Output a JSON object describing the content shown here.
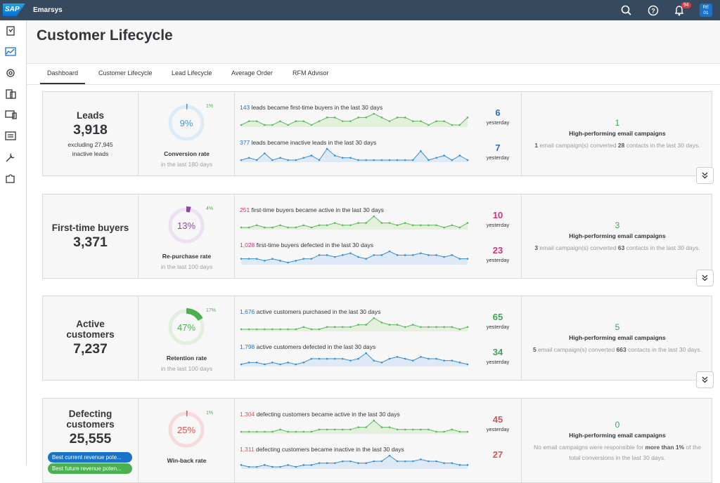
{
  "header": {
    "logo": "SAP",
    "product": "Emarsys",
    "notification_count": "94",
    "avatar": [
      "RE",
      "01"
    ]
  },
  "page_title": "Customer Lifecycle",
  "tabs": [
    "Dashboard",
    "Customer Lifecycle",
    "Lead Lifecycle",
    "Average Order",
    "RFM Advisor"
  ],
  "cards": [
    {
      "name": "Leads",
      "count": "3,918",
      "note": [
        "excluding 27,945",
        "inactive leads"
      ],
      "gauge": {
        "center": "9%",
        "arc": {
          "value": 1,
          "label": "1%"
        },
        "color": "#3a9bdc",
        "track": "#dcecf7",
        "caption": "Conversion rate",
        "period": "in the last 180 days"
      },
      "rows": [
        {
          "count": "143",
          "text": " leads became first-time buyers in the last 30 days",
          "big": "6",
          "sub": "yesterday",
          "count_color": "#2a6fc4",
          "big_color": "#2a6fc4",
          "line": "#5cb85c",
          "area": "#e3f1dc",
          "spark": [
            4,
            5,
            5,
            4,
            4,
            5,
            4,
            5,
            5,
            4,
            5,
            6,
            6,
            5,
            5,
            6,
            6,
            7,
            6,
            5,
            6,
            6,
            5,
            5,
            4,
            5,
            5,
            4,
            4,
            6
          ]
        },
        {
          "count": "377",
          "text": " leads became inactive leads in the last 30 days",
          "big": "7",
          "sub": "yesterday",
          "count_color": "#2a6fc4",
          "big_color": "#2a6fc4",
          "line": "#3a8fd0",
          "area": "#dde9f4",
          "spark": [
            3,
            4,
            3,
            6,
            3,
            4,
            3,
            3,
            4,
            5,
            3,
            8,
            5,
            4,
            4,
            3,
            3,
            3,
            3,
            3,
            3,
            3,
            3,
            7,
            3,
            4,
            5,
            3,
            5,
            3
          ]
        }
      ],
      "campaigns": {
        "count": "1",
        "title": "High-performing email campaigns",
        "desc": [
          {
            "text": "1",
            "bold": true
          },
          {
            "text": " email campaign(s) converted ",
            "bold": false
          },
          {
            "text": "28",
            "bold": true
          },
          {
            "text": " contacts in the last 30 days.",
            "bold": false
          }
        ]
      }
    },
    {
      "name": "First-time buyers",
      "count": "3,371",
      "note": [],
      "gauge": {
        "center": "13%",
        "arc": {
          "value": 4,
          "label": "4%"
        },
        "color": "#8e44ad",
        "track": "#ece0f2",
        "caption": "Re-purchase rate",
        "period": "in the last 100 days"
      },
      "rows": [
        {
          "count": "251",
          "text": " first-time buyers became active in the last 30 days",
          "big": "10",
          "sub": "yesterday",
          "count_color": "#d0327a",
          "big_color": "#d0327a",
          "line": "#5cb85c",
          "area": "#e3f1dc",
          "spark": [
            4,
            4,
            5,
            4,
            4,
            5,
            4,
            4,
            5,
            4,
            5,
            5,
            6,
            5,
            5,
            6,
            6,
            9,
            6,
            6,
            5,
            6,
            5,
            5,
            5,
            5,
            4,
            5,
            4,
            6
          ]
        },
        {
          "count": "1,028",
          "text": " first-time buyers defected in the last 30 days",
          "big": "23",
          "sub": "yesterday",
          "count_color": "#d0327a",
          "big_color": "#d0327a",
          "line": "#3a8fd0",
          "area": "#dde9f4",
          "spark": [
            4,
            4,
            4,
            3,
            4,
            3,
            2,
            3,
            4,
            4,
            6,
            6,
            5,
            6,
            7,
            5,
            4,
            6,
            6,
            8,
            6,
            6,
            6,
            7,
            6,
            6,
            5,
            6,
            4,
            4
          ]
        }
      ],
      "campaigns": {
        "count": "3",
        "title": "High-performing email campaigns",
        "desc": [
          {
            "text": "3",
            "bold": true
          },
          {
            "text": " email campaign(s) converted ",
            "bold": false
          },
          {
            "text": "63",
            "bold": true
          },
          {
            "text": " contacts in the last 30 days.",
            "bold": false
          }
        ]
      }
    },
    {
      "name": "Active customers",
      "count": "7,237",
      "note": [],
      "gauge": {
        "center": "47%",
        "arc": {
          "value": 17,
          "label": "17%"
        },
        "color": "#4caf50",
        "track": "#e0f0dc",
        "caption": "Retention rate",
        "period": "in the last 100 days"
      },
      "rows": [
        {
          "count": "1,676",
          "text": " active customers purchased in the last 30 days",
          "big": "65",
          "sub": "yesterday",
          "count_color": "#2a6fc4",
          "big_color": "#3aa655",
          "line": "#5cb85c",
          "area": "#e3f1dc",
          "spark": [
            4,
            4,
            4,
            4,
            4,
            4,
            4,
            4,
            5,
            4,
            4,
            5,
            5,
            5,
            5,
            6,
            6,
            9,
            7,
            6,
            6,
            5,
            6,
            5,
            5,
            5,
            5,
            5,
            4,
            5
          ]
        },
        {
          "count": "1,798",
          "text": " active customers defected in the last 30 days",
          "big": "34",
          "sub": "yesterday",
          "count_color": "#2a6fc4",
          "big_color": "#3aa655",
          "line": "#3a8fd0",
          "area": "#dde9f4",
          "spark": [
            3,
            4,
            4,
            3,
            4,
            3,
            4,
            3,
            4,
            6,
            6,
            6,
            6,
            6,
            5,
            6,
            9,
            5,
            4,
            6,
            7,
            6,
            5,
            7,
            6,
            6,
            5,
            5,
            4,
            3
          ]
        }
      ],
      "campaigns": {
        "count": "5",
        "title": "High-performing email campaigns",
        "desc": [
          {
            "text": "5",
            "bold": true
          },
          {
            "text": " email campaign(s) converted ",
            "bold": false
          },
          {
            "text": "663",
            "bold": true
          },
          {
            "text": " contacts in the last 30 days.",
            "bold": false
          }
        ]
      }
    },
    {
      "name": "Defecting customers",
      "count": "25,555",
      "note": [],
      "pills": [
        "Best current revenue pote...",
        "Best future revenue poten..."
      ],
      "gauge": {
        "center": "25%",
        "arc": {
          "value": 1,
          "label": "1%"
        },
        "color": "#d9534f",
        "track": "#f5dcdb",
        "caption": "Win-back rate",
        "period": ""
      },
      "rows": [
        {
          "count": "1,304",
          "text": " defecting customers became active in the last 30 days",
          "big": "45",
          "sub": "yesterday",
          "count_color": "#d9534f",
          "big_color": "#d9534f",
          "line": "#5cb85c",
          "area": "#e3f1dc",
          "spark": [
            4,
            4,
            4,
            4,
            4,
            5,
            4,
            4,
            4,
            4,
            5,
            5,
            5,
            5,
            5,
            6,
            6,
            9,
            6,
            6,
            5,
            5,
            5,
            5,
            5,
            4,
            4,
            5,
            4,
            4
          ]
        },
        {
          "count": "1,311",
          "text": " defecting customers became inactive in the last 30 days",
          "big": "27",
          "sub": "",
          "count_color": "#d9534f",
          "big_color": "#d9534f",
          "line": "#3a8fd0",
          "area": "#dde9f4",
          "spark": [
            4,
            3,
            3,
            4,
            3,
            3,
            4,
            3,
            4,
            4,
            5,
            5,
            5,
            6,
            6,
            5,
            5,
            6,
            6,
            9,
            6,
            6,
            6,
            7,
            6,
            6,
            5,
            5,
            4,
            4
          ]
        }
      ],
      "campaigns": {
        "count": "0",
        "title": "High-performing email campaigns",
        "desc": [
          {
            "text": "No email campaigns were responsible for ",
            "bold": false
          },
          {
            "text": "more than 1%",
            "bold": true
          },
          {
            "text": " of the total conversions in the last 30 days.",
            "bold": false
          }
        ]
      }
    }
  ]
}
